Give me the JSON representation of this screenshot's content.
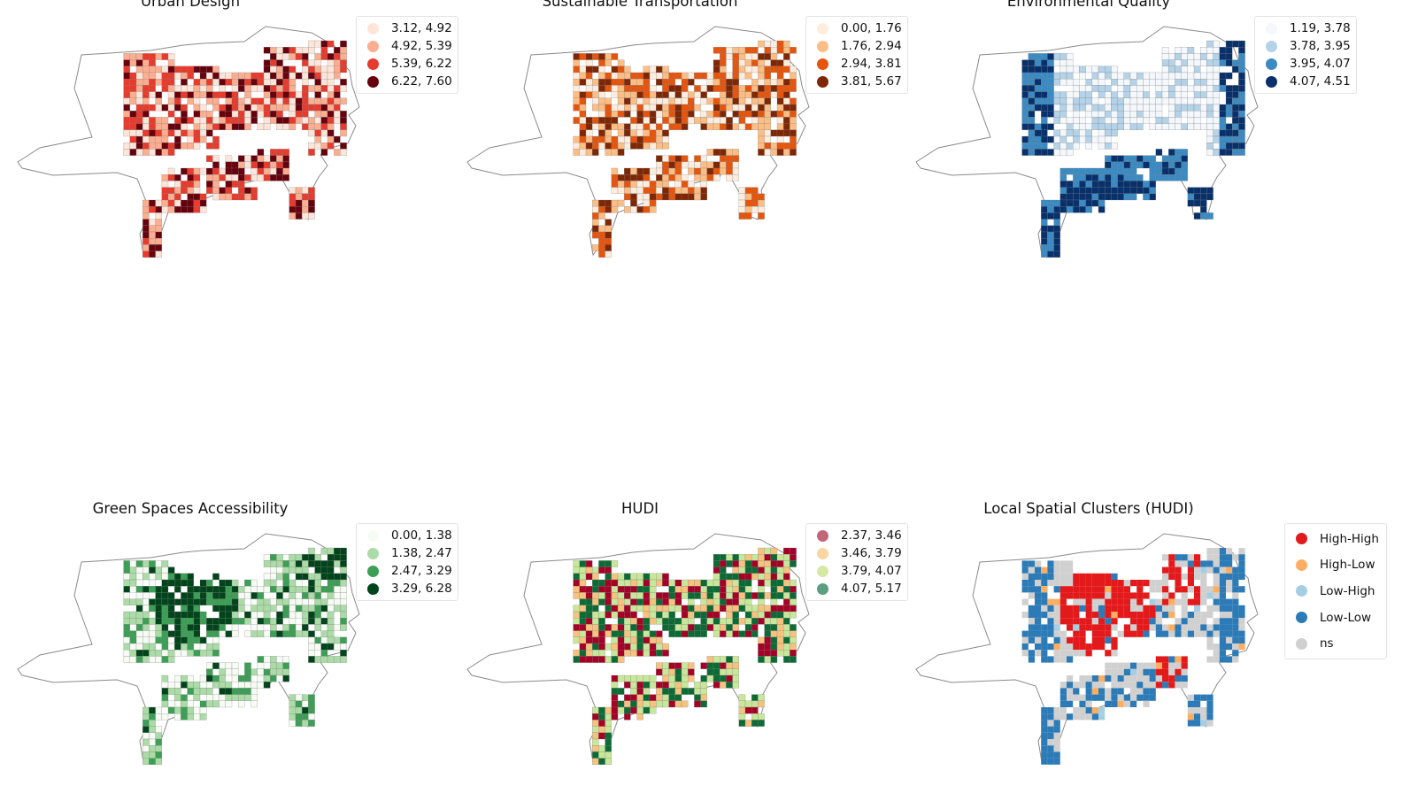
{
  "panels": [
    {
      "id": "urban-design",
      "title": "Urban Design",
      "palette": [
        "#fee5d9",
        "#fcae91",
        "#e63b2d",
        "#67000d"
      ],
      "legend": [
        "3.12, 4.92",
        "4.92, 5.39",
        "5.39, 6.22",
        "6.22, 7.60"
      ]
    },
    {
      "id": "sustainable-transportation",
      "title": "Sustainable Transportation",
      "palette": [
        "#feedde",
        "#fdbe85",
        "#e6550d",
        "#7f2704"
      ],
      "legend": [
        "0.00, 1.76",
        "1.76, 2.94",
        "2.94, 3.81",
        "3.81, 5.67"
      ]
    },
    {
      "id": "environmental-quality",
      "title": "Environmental Quality",
      "palette": [
        "#f4f8fc",
        "#b4d2e8",
        "#3b8bc2",
        "#08306b"
      ],
      "legend": [
        "1.19, 3.78",
        "3.78, 3.95",
        "3.95, 4.07",
        "4.07, 4.51"
      ]
    },
    {
      "id": "green-spaces-accessibility",
      "title": "Green Spaces Accessibility",
      "palette": [
        "#f6fbf4",
        "#abdba6",
        "#3d9e55",
        "#00441b"
      ],
      "legend": [
        "0.00, 1.38",
        "1.38, 2.47",
        "2.47, 3.29",
        "3.29, 6.28"
      ]
    },
    {
      "id": "hudi",
      "title": "HUDI",
      "palette": [
        "#c2677a",
        "#fbd5a2",
        "#d6e9a4",
        "#5a9f80"
      ],
      "draw_palette": [
        "#a50026",
        "#f6c27e",
        "#c8e79a",
        "#0c6b35"
      ],
      "legend": [
        "2.37, 3.46",
        "3.46, 3.79",
        "3.79, 4.07",
        "4.07, 5.17"
      ]
    },
    {
      "id": "local-spatial-clusters",
      "title": "Local Spatial Clusters (HUDI)",
      "palette": [
        "#e31a1c",
        "#fdae61",
        "#a6cee3",
        "#2c7bb6",
        "#d0d0d0"
      ],
      "legend": [
        "High-High",
        "High-Low",
        "Low-High",
        "Low-Low",
        "ns"
      ]
    }
  ]
}
